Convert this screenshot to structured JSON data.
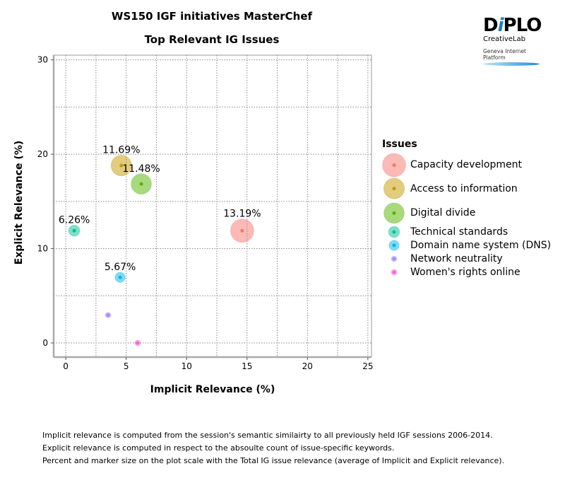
{
  "titles": {
    "main": "WS150 IGF initiatives MasterChef",
    "sub": "Top Relevant IG Issues"
  },
  "logo": {
    "brand": "DiPLO",
    "sub": "CreativeLab",
    "platform": "Geneva Internet Platform"
  },
  "footnotes": [
    "Implicit relevance is computed from the session's semantic similairty to all previously held IGF sessions 2006-2014.",
    "Explicit relevance is computed in respect to the absoulte count of issue-specific keywords.",
    "Percent and marker size on the plot scale with the Total IG issue relevance (average of Implicit and Explicit relevance)."
  ],
  "chart_data": {
    "type": "scatter",
    "xlabel": "Implicit Relevance (%)",
    "ylabel": "Explicit Relevance (%)",
    "xlim": [
      -1,
      25.3
    ],
    "ylim": [
      -1.5,
      30.5
    ],
    "xticks": [
      0,
      5,
      10,
      15,
      20,
      25
    ],
    "yticks": [
      0,
      10,
      20,
      30
    ],
    "grid": true,
    "legend_title": "Issues",
    "legend_placement": "right",
    "points": [
      {
        "name": "Capacity development",
        "x": 14.6,
        "y": 11.9,
        "total": 13.19,
        "label": "13.19%",
        "color": "#F8766D"
      },
      {
        "name": "Access to information",
        "x": 4.6,
        "y": 18.8,
        "total": 11.69,
        "label": "11.69%",
        "color": "#C49A00"
      },
      {
        "name": "Digital divide",
        "x": 6.25,
        "y": 16.85,
        "total": 11.48,
        "label": "11.48%",
        "color": "#53B400"
      },
      {
        "name": "Technical standards",
        "x": 0.7,
        "y": 11.9,
        "total": 6.26,
        "label": "6.26%",
        "color": "#00C094"
      },
      {
        "name": "Domain name system (DNS)",
        "x": 4.5,
        "y": 6.95,
        "total": 5.67,
        "label": "5.67%",
        "color": "#00B6EB"
      },
      {
        "name": "Network neutrality",
        "x": 3.5,
        "y": 2.95,
        "total": 3.2,
        "label": "",
        "color": "#A58AFF"
      },
      {
        "name": "Women's rights online",
        "x": 5.95,
        "y": 0,
        "total": 3.0,
        "label": "",
        "color": "#FB61D7"
      }
    ]
  }
}
